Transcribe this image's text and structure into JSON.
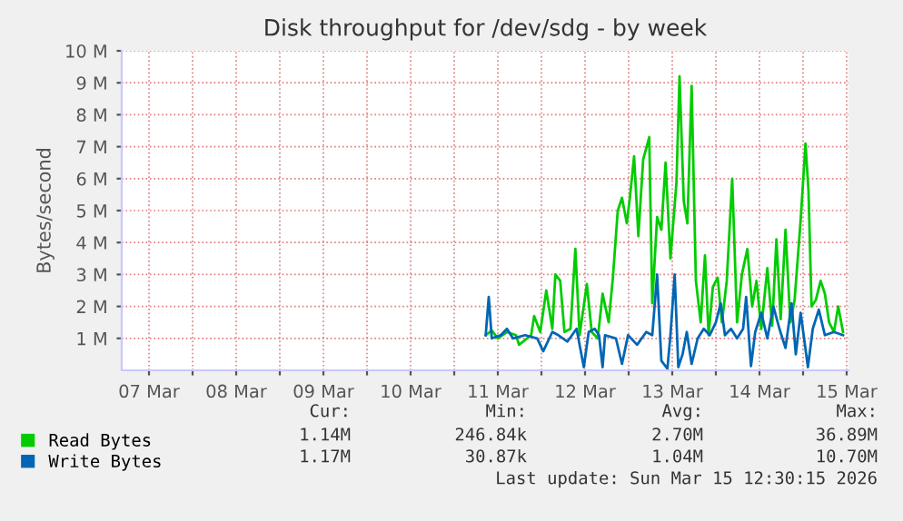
{
  "chart_data": {
    "type": "line",
    "title": "Disk throughput for /dev/sdg - by week",
    "ylabel": "Bytes/second",
    "xlim": [
      "2026-03-07T04:30",
      "2026-03-15T12:30"
    ],
    "xticks": [
      {
        "value": "2026-03-07T12:00",
        "label": "07 Mar"
      },
      {
        "value": "2026-03-08T12:00",
        "label": "08 Mar"
      },
      {
        "value": "2026-03-09T12:00",
        "label": "09 Mar"
      },
      {
        "value": "2026-03-10T12:00",
        "label": "10 Mar"
      },
      {
        "value": "2026-03-11T12:00",
        "label": "11 Mar"
      },
      {
        "value": "2026-03-12T12:00",
        "label": "12 Mar"
      },
      {
        "value": "2026-03-13T12:00",
        "label": "13 Mar"
      },
      {
        "value": "2026-03-14T12:00",
        "label": "14 Mar"
      },
      {
        "value": "2026-03-15T12:00",
        "label": "15 Mar"
      },
      {
        "value": "2026-03-08T00:00",
        "label": null
      },
      {
        "value": "2026-03-09T00:00",
        "label": null
      },
      {
        "value": "2026-03-10T00:00",
        "label": null
      },
      {
        "value": "2026-03-11T00:00",
        "label": null
      },
      {
        "value": "2026-03-12T00:00",
        "label": null
      },
      {
        "value": "2026-03-13T00:00",
        "label": null
      },
      {
        "value": "2026-03-14T00:00",
        "label": null
      },
      {
        "value": "2026-03-15T00:00",
        "label": null
      }
    ],
    "ylim": [
      0,
      10
    ],
    "yticks": [
      {
        "value": 1,
        "label": "1 M"
      },
      {
        "value": 2,
        "label": "2 M"
      },
      {
        "value": 3,
        "label": "3 M"
      },
      {
        "value": 4,
        "label": "4 M"
      },
      {
        "value": 5,
        "label": "5 M"
      },
      {
        "value": 6,
        "label": "6 M"
      },
      {
        "value": 7,
        "label": "7 M"
      },
      {
        "value": 8,
        "label": "8 M"
      },
      {
        "value": 9,
        "label": "9 M"
      },
      {
        "value": 10,
        "label": "10 M"
      }
    ],
    "grid": true,
    "legend": "bottom left",
    "series": [
      {
        "name": "Read Bytes",
        "color": "#00cc00",
        "x": [
          "2026-03-11T08:40",
          "2026-03-11T10:20",
          "2026-03-11T12:00",
          "2026-03-11T14:30",
          "2026-03-11T17:00",
          "2026-03-11T17:50",
          "2026-03-11T21:10",
          "2026-03-11T22:00",
          "2026-03-11T23:40",
          "2026-03-12T01:20",
          "2026-03-12T03:00",
          "2026-03-12T03:50",
          "2026-03-12T05:10",
          "2026-03-12T06:20",
          "2026-03-12T08:00",
          "2026-03-12T09:20",
          "2026-03-12T10:30",
          "2026-03-12T12:30",
          "2026-03-12T13:50",
          "2026-03-12T15:30",
          "2026-03-12T16:50",
          "2026-03-12T18:30",
          "2026-03-12T19:40",
          "2026-03-12T21:00",
          "2026-03-12T22:10",
          "2026-03-12T23:30",
          "2026-03-13T00:20",
          "2026-03-13T01:30",
          "2026-03-13T02:40",
          "2026-03-13T04:00",
          "2026-03-13T05:40",
          "2026-03-13T06:30",
          "2026-03-13T07:50",
          "2026-03-13T09:00",
          "2026-03-13T10:10",
          "2026-03-13T11:30",
          "2026-03-13T13:10",
          "2026-03-13T14:00",
          "2026-03-13T15:10",
          "2026-03-13T16:10",
          "2026-03-13T17:20",
          "2026-03-13T18:30",
          "2026-03-13T19:50",
          "2026-03-13T21:00",
          "2026-03-13T22:00",
          "2026-03-13T23:10",
          "2026-03-14T00:30",
          "2026-03-14T01:40",
          "2026-03-14T03:00",
          "2026-03-14T04:30",
          "2026-03-14T05:50",
          "2026-03-14T07:10",
          "2026-03-14T08:40",
          "2026-03-14T10:00",
          "2026-03-14T11:10",
          "2026-03-14T12:30",
          "2026-03-14T14:10",
          "2026-03-14T15:30",
          "2026-03-14T16:40",
          "2026-03-14T17:50",
          "2026-03-14T19:10",
          "2026-03-14T20:30",
          "2026-03-14T21:40",
          "2026-03-14T23:20",
          "2026-03-15T00:40",
          "2026-03-15T01:30",
          "2026-03-15T02:20",
          "2026-03-15T03:30",
          "2026-03-15T04:50",
          "2026-03-15T06:00",
          "2026-03-15T07:10",
          "2026-03-15T08:30",
          "2026-03-15T09:40",
          "2026-03-15T11:00"
        ],
        "values": [
          1.1,
          1.25,
          1.0,
          1.2,
          1.1,
          0.8,
          1.1,
          1.7,
          1.2,
          2.5,
          1.3,
          3.0,
          2.8,
          1.2,
          1.3,
          3.8,
          1.1,
          2.7,
          1.2,
          1.0,
          2.4,
          1.5,
          2.9,
          5.0,
          5.4,
          4.6,
          5.4,
          6.7,
          4.2,
          6.6,
          7.3,
          2.1,
          4.8,
          4.4,
          6.5,
          3.5,
          5.9,
          9.2,
          5.3,
          4.6,
          8.9,
          2.8,
          1.5,
          3.6,
          1.1,
          2.6,
          2.9,
          1.5,
          2.8,
          6.0,
          1.5,
          3.0,
          3.8,
          2.0,
          2.8,
          1.3,
          3.2,
          1.4,
          4.1,
          1.6,
          4.4,
          1.5,
          2.2,
          4.7,
          7.1,
          5.6,
          2.0,
          2.2,
          2.8,
          2.4,
          1.5,
          1.2,
          2.0,
          1.2
        ]
      },
      {
        "name": "Write Bytes",
        "color": "#0066b3",
        "x": [
          "2026-03-11T08:40",
          "2026-03-11T09:30",
          "2026-03-11T10:20",
          "2026-03-11T12:50",
          "2026-03-11T14:30",
          "2026-03-11T16:10",
          "2026-03-11T19:30",
          "2026-03-11T22:50",
          "2026-03-12T00:30",
          "2026-03-12T03:00",
          "2026-03-12T04:40",
          "2026-03-12T07:10",
          "2026-03-12T09:40",
          "2026-03-12T11:40",
          "2026-03-12T13:00",
          "2026-03-12T14:40",
          "2026-03-12T15:50",
          "2026-03-12T16:50",
          "2026-03-12T17:30",
          "2026-03-12T20:30",
          "2026-03-12T22:10",
          "2026-03-12T23:50",
          "2026-03-13T02:20",
          "2026-03-13T04:50",
          "2026-03-13T06:30",
          "2026-03-13T07:50",
          "2026-03-13T09:00",
          "2026-03-13T10:40",
          "2026-03-13T11:30",
          "2026-03-13T12:40",
          "2026-03-13T13:40",
          "2026-03-13T14:50",
          "2026-03-13T16:00",
          "2026-03-13T17:20",
          "2026-03-13T19:00",
          "2026-03-13T20:40",
          "2026-03-13T22:20",
          "2026-03-14T00:00",
          "2026-03-14T01:20",
          "2026-03-14T02:30",
          "2026-03-14T04:10",
          "2026-03-14T05:50",
          "2026-03-14T07:30",
          "2026-03-14T08:20",
          "2026-03-14T09:40",
          "2026-03-14T10:50",
          "2026-03-14T12:30",
          "2026-03-14T14:10",
          "2026-03-14T15:50",
          "2026-03-14T17:30",
          "2026-03-14T19:10",
          "2026-03-14T20:50",
          "2026-03-14T22:00",
          "2026-03-14T23:20",
          "2026-03-15T01:20",
          "2026-03-15T02:40",
          "2026-03-15T04:20",
          "2026-03-15T06:00",
          "2026-03-15T08:30",
          "2026-03-15T11:00"
        ],
        "values": [
          1.1,
          2.3,
          1.0,
          1.1,
          1.3,
          1.0,
          1.1,
          1.0,
          0.6,
          1.2,
          1.1,
          0.9,
          1.3,
          0.1,
          1.2,
          1.3,
          1.1,
          0.1,
          1.1,
          1.0,
          0.2,
          1.1,
          0.8,
          1.2,
          1.1,
          3.0,
          0.3,
          0.05,
          1.1,
          3.0,
          0.1,
          0.5,
          1.2,
          0.2,
          1.0,
          1.3,
          1.1,
          1.5,
          2.1,
          1.1,
          1.3,
          1.0,
          1.3,
          2.3,
          0.13,
          1.2,
          1.8,
          1.0,
          2.0,
          1.3,
          0.7,
          2.1,
          0.5,
          1.8,
          0.1,
          1.3,
          1.9,
          1.1,
          1.2,
          1.1
        ]
      }
    ],
    "annotations": [
      "Cur:",
      "Min:",
      "Avg:",
      "Max:",
      "1.14M",
      "246.84k",
      "2.70M",
      "36.89M",
      "1.17M",
      "30.87k",
      "1.04M",
      "10.70M",
      "Last update: Sun Mar 15 12:30:15 2026"
    ]
  }
}
